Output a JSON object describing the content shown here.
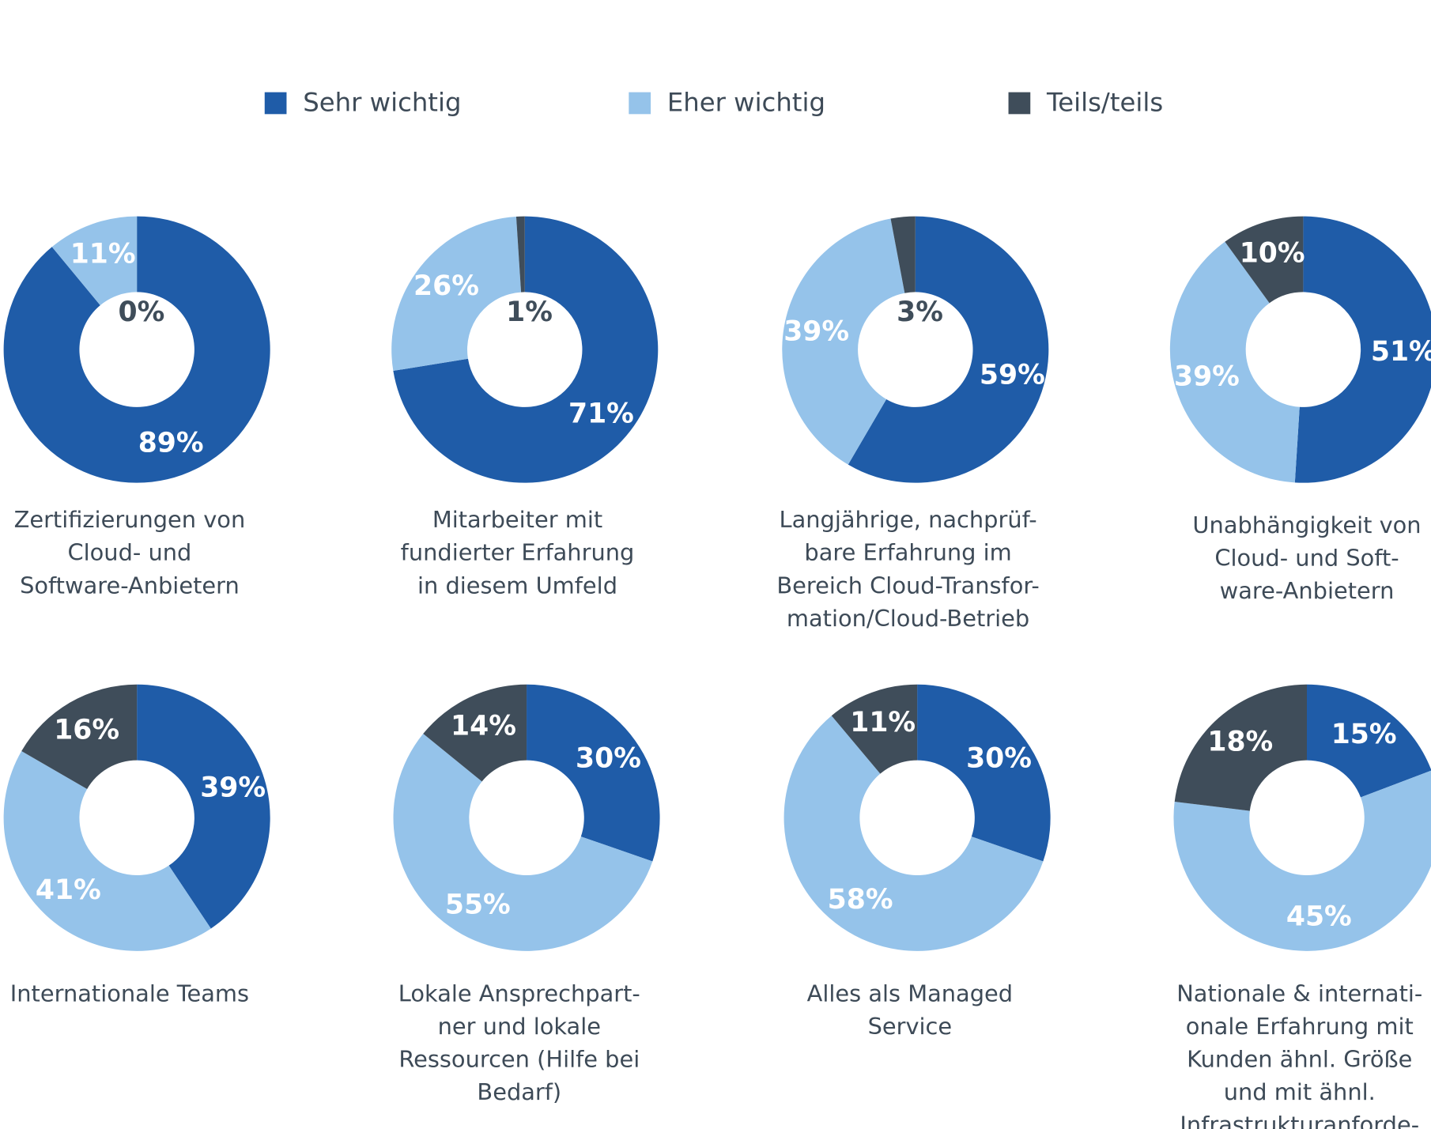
{
  "legend": [
    {
      "name": "Sehr wichtig",
      "color": "#1f5ca8"
    },
    {
      "name": "Eher wichtig",
      "color": "#95c3ea"
    },
    {
      "name": "Teils/teils",
      "color": "#3f4d5a"
    }
  ],
  "chart_data": [
    {
      "type": "donut",
      "label_lines": [
        "Zertifizierungen von",
        "Cloud- und",
        "Software-Anbietern"
      ],
      "values": [
        89,
        11,
        0
      ],
      "value_labels": [
        "89%",
        "11%",
        "0%"
      ]
    },
    {
      "type": "donut",
      "label_lines": [
        "Mitarbeiter mit",
        "fundierter Erfahrung",
        "in diesem Umfeld"
      ],
      "values": [
        71,
        26,
        1
      ],
      "value_labels": [
        "71%",
        "26%",
        "1%"
      ]
    },
    {
      "type": "donut",
      "label_lines": [
        "Langjährige, nachprüf-",
        "bare Erfahrung im",
        "Bereich Cloud-Transfor-",
        "mation/Cloud-Betrieb"
      ],
      "values": [
        59,
        39,
        3
      ],
      "value_labels": [
        "59%",
        "39%",
        "3%"
      ]
    },
    {
      "type": "donut",
      "label_lines": [
        "Unabhängigkeit von",
        "Cloud- und Soft-",
        "ware-Anbietern"
      ],
      "values": [
        51,
        39,
        10
      ],
      "value_labels": [
        "51%",
        "39%",
        "10%"
      ]
    },
    {
      "type": "donut",
      "label_lines": [
        "Internationale Teams"
      ],
      "values": [
        39,
        41,
        16
      ],
      "value_labels": [
        "39%",
        "41%",
        "16%"
      ]
    },
    {
      "type": "donut",
      "label_lines": [
        "Lokale Ansprechpart-",
        "ner und lokale",
        "Ressourcen (Hilfe bei",
        "Bedarf)"
      ],
      "values": [
        30,
        55,
        14
      ],
      "value_labels": [
        "30%",
        "55%",
        "14%"
      ]
    },
    {
      "type": "donut",
      "label_lines": [
        "Alles als Managed",
        "Service"
      ],
      "values": [
        30,
        58,
        11
      ],
      "value_labels": [
        "30%",
        "58%",
        "11%"
      ]
    },
    {
      "type": "donut",
      "label_lines": [
        "Nationale & internati-",
        "onale Erfahrung mit",
        "Kunden ähnl. Größe",
        "und mit ähnl.",
        "Infrastrukturanforde-"
      ],
      "values": [
        15,
        45,
        18
      ],
      "value_labels": [
        "15%",
        "45%",
        "18%"
      ]
    }
  ]
}
